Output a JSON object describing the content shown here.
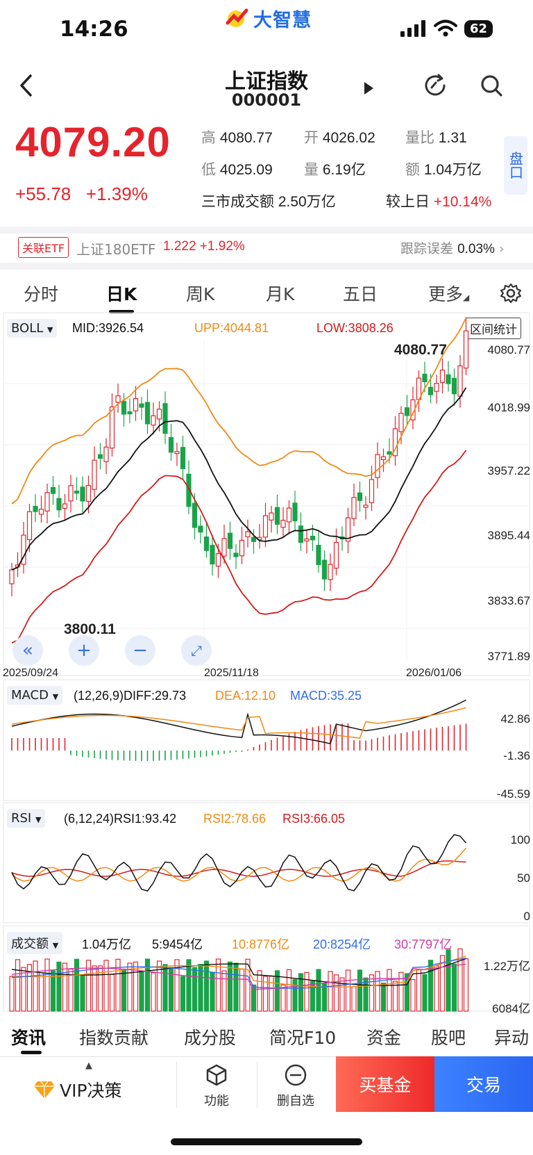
{
  "status_bar": {
    "time": "14:26",
    "battery": "62"
  },
  "app": {
    "logo_text": "大智慧"
  },
  "header": {
    "title": "上证指数",
    "code": "000001"
  },
  "quote": {
    "price": "4079.20",
    "change": "+55.78",
    "change_pct": "+1.39%",
    "high_label": "高",
    "high": "4080.77",
    "open_label": "开",
    "open": "4026.02",
    "volume_ratio_label": "量比",
    "volume_ratio": "1.31",
    "low_label": "低",
    "low": "4025.09",
    "volume_label": "量",
    "volume": "6.19亿",
    "amount_label": "额",
    "amount": "1.04万亿",
    "market_turnover": "三市成交额 2.50万亿",
    "vs_prev_label": "较上日",
    "vs_prev": "+10.14%",
    "pankou": "盘口"
  },
  "etf": {
    "tag": "关联ETF",
    "name": "上证180ETF",
    "value": "1.222 +1.92%",
    "tracking_label": "跟踪误差",
    "tracking_value": "0.03%"
  },
  "tabs": [
    "分时",
    "日K",
    "周K",
    "月K",
    "五日",
    "更多"
  ],
  "colors": {
    "up": "#e5232d",
    "down": "#1aa34a",
    "upp": "#f08a14",
    "low": "#d41b1b",
    "mid": "#111111",
    "blue": "#2f6ef2",
    "magenta": "#d43aa8"
  },
  "kline": {
    "indicator": "BOLL",
    "mid": "MID:3926.54",
    "upp": "UPP:4044.81",
    "low": "LOW:3808.26",
    "range_stats": "区间统计",
    "y_ticks": [
      "4080.77",
      "4018.99",
      "3957.22",
      "3895.44",
      "3833.67",
      "3771.89"
    ],
    "x_ticks": [
      "2025/09/24",
      "2025/11/18",
      "2026/01/06"
    ],
    "max_label": "4080.77",
    "min_label": "3800.11"
  },
  "macd": {
    "indicator": "MACD",
    "params": "(12,26,9)DIFF:29.73",
    "dea": "DEA:12.10",
    "macd": "MACD:35.25",
    "y_ticks": [
      "42.86",
      "-1.36",
      "-45.59"
    ]
  },
  "rsi": {
    "indicator": "RSI",
    "params": "(6,12,24)RSI1:93.42",
    "rsi2": "RSI2:78.66",
    "rsi3": "RSI3:66.05",
    "y_ticks": [
      "100",
      "50",
      "0"
    ]
  },
  "volume": {
    "indicator": "成交额",
    "total": "1.04万亿",
    "ma5": "5:9454亿",
    "ma10": "10:8776亿",
    "ma20": "20:8254亿",
    "ma30": "30:7797亿",
    "y_ticks": [
      "1.22万亿",
      "6084亿"
    ]
  },
  "bottom_tabs": [
    "资讯",
    "指数贡献",
    "成分股",
    "简况F10",
    "资金",
    "股吧",
    "异动"
  ],
  "toolbar": {
    "vip": "VIP决策",
    "func": "功能",
    "remove": "删自选",
    "buy": "买基金",
    "trade": "交易"
  }
}
